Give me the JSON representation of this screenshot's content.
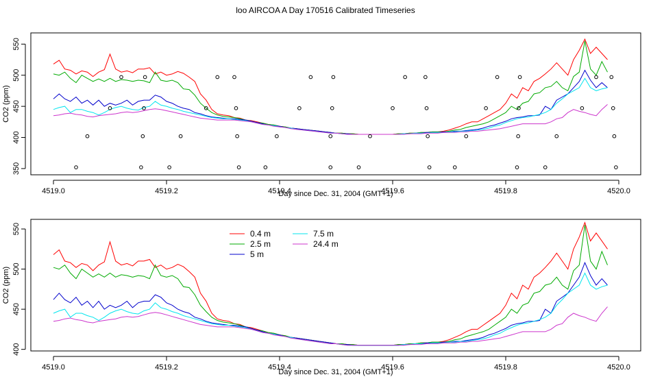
{
  "title": "loo AIRCOA A  Day 170516  Calibrated Timeseries",
  "colors": {
    "0.4 m": "#ff0000",
    "2.5 m": "#00aa00",
    "5 m": "#0000cc",
    "7.5 m": "#00e5ee",
    "24.4 m": "#cc33cc"
  },
  "chart_data": [
    {
      "type": "line",
      "xlabel": "Day since Dec. 31, 2004 (GMT+1)",
      "ylabel": "CO2 (ppm)",
      "xlim": [
        4518.99,
        4520.01
      ],
      "ylim": [
        340,
        568
      ],
      "xticks": [
        "4519.0",
        "4519.2",
        "4519.4",
        "4519.6",
        "4519.8",
        "4520.0"
      ],
      "yticks": [
        "350",
        "400",
        "450",
        "500",
        "550"
      ],
      "x": [
        4519.0,
        4519.01,
        4519.02,
        4519.03,
        4519.04,
        4519.05,
        4519.06,
        4519.07,
        4519.08,
        4519.09,
        4519.1,
        4519.11,
        4519.12,
        4519.13,
        4519.14,
        4519.15,
        4519.16,
        4519.17,
        4519.18,
        4519.19,
        4519.2,
        4519.21,
        4519.22,
        4519.23,
        4519.24,
        4519.25,
        4519.26,
        4519.27,
        4519.28,
        4519.29,
        4519.3,
        4519.31,
        4519.32,
        4519.33,
        4519.34,
        4519.35,
        4519.36,
        4519.37,
        4519.38,
        4519.39,
        4519.4,
        4519.41,
        4519.42,
        4519.43,
        4519.44,
        4519.45,
        4519.46,
        4519.47,
        4519.48,
        4519.49,
        4519.5,
        4519.51,
        4519.52,
        4519.53,
        4519.54,
        4519.55,
        4519.56,
        4519.57,
        4519.58,
        4519.59,
        4519.6,
        4519.61,
        4519.62,
        4519.63,
        4519.64,
        4519.65,
        4519.66,
        4519.67,
        4519.68,
        4519.69,
        4519.7,
        4519.71,
        4519.72,
        4519.73,
        4519.74,
        4519.75,
        4519.76,
        4519.77,
        4519.78,
        4519.79,
        4519.8,
        4519.81,
        4519.82,
        4519.83,
        4519.84,
        4519.85,
        4519.86,
        4519.87,
        4519.88,
        4519.89,
        4519.9,
        4519.91,
        4519.92,
        4519.93,
        4519.94,
        4519.95,
        4519.96,
        4519.97,
        4519.98
      ],
      "series": [
        {
          "name": "0.4 m",
          "values": [
            518,
            524,
            510,
            508,
            502,
            507,
            505,
            498,
            505,
            509,
            534,
            510,
            505,
            507,
            504,
            510,
            510,
            512,
            502,
            505,
            500,
            502,
            506,
            503,
            497,
            490,
            470,
            460,
            445,
            438,
            436,
            435,
            432,
            431,
            428,
            427,
            425,
            423,
            421,
            420,
            418,
            417,
            415,
            414,
            413,
            412,
            411,
            410,
            409,
            408,
            407,
            407,
            406,
            406,
            405,
            405,
            405,
            405,
            405,
            405,
            405,
            406,
            406,
            407,
            407,
            408,
            408,
            409,
            409,
            410,
            412,
            415,
            418,
            422,
            425,
            425,
            430,
            435,
            440,
            445,
            455,
            470,
            463,
            480,
            475,
            490,
            495,
            502,
            510,
            520,
            510,
            500,
            525,
            540,
            558,
            535,
            545,
            535,
            525
          ]
        },
        {
          "name": "2.5 m",
          "values": [
            502,
            500,
            505,
            495,
            488,
            500,
            495,
            490,
            494,
            490,
            495,
            490,
            493,
            492,
            490,
            492,
            491,
            488,
            505,
            492,
            490,
            492,
            488,
            478,
            477,
            468,
            455,
            447,
            440,
            436,
            434,
            433,
            432,
            430,
            428,
            426,
            424,
            423,
            421,
            420,
            418,
            417,
            415,
            414,
            413,
            412,
            411,
            410,
            409,
            408,
            407,
            407,
            406,
            406,
            405,
            405,
            405,
            405,
            405,
            405,
            405,
            406,
            406,
            407,
            407,
            408,
            408,
            409,
            409,
            409,
            410,
            412,
            413,
            416,
            418,
            420,
            422,
            425,
            430,
            435,
            440,
            450,
            445,
            455,
            458,
            470,
            472,
            480,
            482,
            490,
            480,
            475,
            498,
            505,
            555,
            510,
            500,
            522,
            505
          ]
        },
        {
          "name": "5 m",
          "values": [
            462,
            470,
            462,
            458,
            465,
            455,
            460,
            452,
            460,
            450,
            455,
            452,
            455,
            460,
            452,
            458,
            460,
            460,
            468,
            465,
            458,
            455,
            450,
            447,
            445,
            440,
            438,
            435,
            433,
            432,
            431,
            430,
            430,
            429,
            428,
            426,
            424,
            422,
            420,
            419,
            418,
            416,
            415,
            414,
            413,
            412,
            411,
            410,
            409,
            408,
            407,
            406,
            406,
            405,
            405,
            405,
            405,
            405,
            405,
            405,
            405,
            405,
            406,
            406,
            407,
            407,
            408,
            408,
            408,
            409,
            409,
            410,
            410,
            411,
            412,
            413,
            415,
            418,
            420,
            423,
            426,
            430,
            432,
            433,
            435,
            435,
            436,
            450,
            445,
            460,
            465,
            470,
            480,
            490,
            508,
            492,
            480,
            488,
            480
          ]
        },
        {
          "name": "7.5 m",
          "values": [
            445,
            448,
            450,
            440,
            445,
            445,
            442,
            440,
            436,
            440,
            445,
            448,
            450,
            447,
            445,
            444,
            448,
            450,
            458,
            452,
            450,
            447,
            445,
            442,
            440,
            438,
            436,
            434,
            432,
            431,
            430,
            430,
            429,
            428,
            427,
            425,
            423,
            421,
            420,
            419,
            417,
            416,
            415,
            413,
            412,
            411,
            410,
            409,
            408,
            407,
            407,
            406,
            405,
            405,
            405,
            405,
            405,
            405,
            405,
            405,
            405,
            405,
            406,
            406,
            407,
            407,
            407,
            408,
            408,
            408,
            409,
            409,
            410,
            410,
            411,
            412,
            413,
            415,
            418,
            420,
            424,
            427,
            430,
            432,
            433,
            435,
            437,
            440,
            445,
            455,
            462,
            470,
            475,
            480,
            495,
            480,
            475,
            478,
            480
          ]
        },
        {
          "name": "24.4 m",
          "values": [
            435,
            436,
            438,
            439,
            437,
            436,
            434,
            433,
            435,
            436,
            437,
            438,
            440,
            441,
            440,
            441,
            443,
            445,
            446,
            445,
            443,
            441,
            439,
            437,
            435,
            433,
            431,
            430,
            429,
            428,
            428,
            428,
            428,
            427,
            426,
            425,
            423,
            421,
            420,
            418,
            417,
            416,
            414,
            413,
            412,
            411,
            410,
            409,
            408,
            407,
            407,
            406,
            405,
            405,
            405,
            405,
            405,
            405,
            405,
            405,
            405,
            405,
            405,
            406,
            406,
            406,
            407,
            407,
            407,
            408,
            408,
            408,
            409,
            409,
            410,
            410,
            411,
            412,
            413,
            414,
            416,
            418,
            420,
            422,
            422,
            422,
            422,
            422,
            425,
            430,
            432,
            440,
            445,
            442,
            440,
            437,
            435,
            445,
            453
          ]
        }
      ],
      "points": [
        {
          "x": 4519.04,
          "y": 352
        },
        {
          "x": 4519.06,
          "y": 402
        },
        {
          "x": 4519.1,
          "y": 447
        },
        {
          "x": 4519.12,
          "y": 497
        },
        {
          "x": 4519.155,
          "y": 352
        },
        {
          "x": 4519.158,
          "y": 402
        },
        {
          "x": 4519.16,
          "y": 447
        },
        {
          "x": 4519.162,
          "y": 497
        },
        {
          "x": 4519.205,
          "y": 352
        },
        {
          "x": 4519.225,
          "y": 402
        },
        {
          "x": 4519.27,
          "y": 447
        },
        {
          "x": 4519.29,
          "y": 497
        },
        {
          "x": 4519.32,
          "y": 497
        },
        {
          "x": 4519.323,
          "y": 447
        },
        {
          "x": 4519.325,
          "y": 402
        },
        {
          "x": 4519.328,
          "y": 352
        },
        {
          "x": 4519.375,
          "y": 352
        },
        {
          "x": 4519.395,
          "y": 402
        },
        {
          "x": 4519.435,
          "y": 447
        },
        {
          "x": 4519.455,
          "y": 497
        },
        {
          "x": 4519.49,
          "y": 352
        },
        {
          "x": 4519.49,
          "y": 402
        },
        {
          "x": 4519.493,
          "y": 447
        },
        {
          "x": 4519.495,
          "y": 497
        },
        {
          "x": 4519.54,
          "y": 352
        },
        {
          "x": 4519.56,
          "y": 402
        },
        {
          "x": 4519.6,
          "y": 447
        },
        {
          "x": 4519.622,
          "y": 497
        },
        {
          "x": 4519.658,
          "y": 497
        },
        {
          "x": 4519.66,
          "y": 447
        },
        {
          "x": 4519.662,
          "y": 402
        },
        {
          "x": 4519.665,
          "y": 352
        },
        {
          "x": 4519.71,
          "y": 352
        },
        {
          "x": 4519.73,
          "y": 402
        },
        {
          "x": 4519.765,
          "y": 447
        },
        {
          "x": 4519.785,
          "y": 497
        },
        {
          "x": 4519.82,
          "y": 352
        },
        {
          "x": 4519.822,
          "y": 402
        },
        {
          "x": 4519.823,
          "y": 447
        },
        {
          "x": 4519.825,
          "y": 497
        },
        {
          "x": 4519.87,
          "y": 352
        },
        {
          "x": 4519.89,
          "y": 402
        },
        {
          "x": 4519.935,
          "y": 447
        },
        {
          "x": 4519.96,
          "y": 497
        },
        {
          "x": 4519.987,
          "y": 497
        },
        {
          "x": 4519.99,
          "y": 447
        },
        {
          "x": 4519.992,
          "y": 402
        },
        {
          "x": 4519.995,
          "y": 352
        }
      ]
    },
    {
      "type": "line",
      "xlabel": "Day since Dec. 31, 2004 (GMT+1)",
      "ylabel": "CO2 (ppm)",
      "xlim": [
        4518.99,
        4520.01
      ],
      "ylim": [
        398,
        562
      ],
      "xticks": [
        "4519.0",
        "4519.2",
        "4519.4",
        "4519.6",
        "4519.8",
        "4520.0"
      ],
      "yticks": [
        "400",
        "450",
        "500",
        "550"
      ],
      "legend": [
        "0.4 m",
        "2.5 m",
        "5 m",
        "7.5 m",
        "24.4 m"
      ],
      "legend_position": "top-left"
    }
  ]
}
